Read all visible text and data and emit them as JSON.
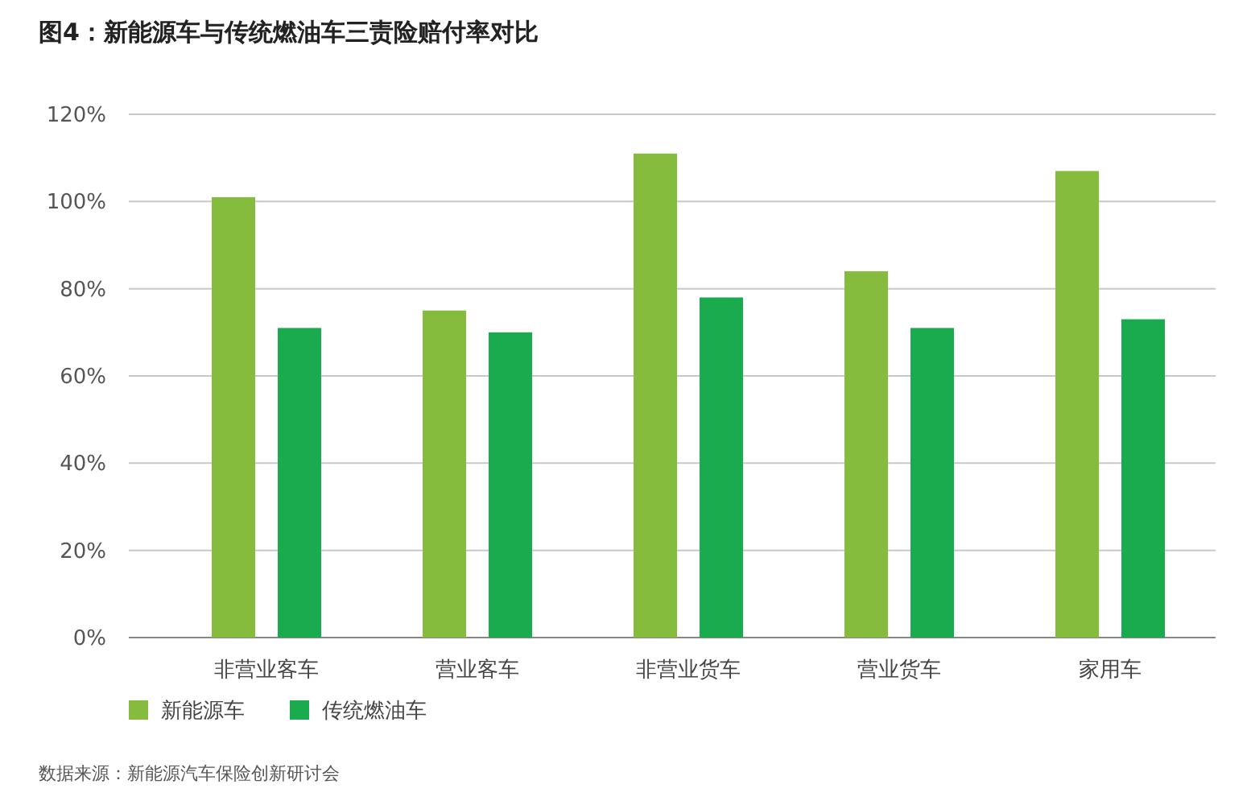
{
  "chart_data": {
    "type": "bar",
    "title": "图4：新能源车与传统燃油车三责险赔付率对比",
    "categories": [
      "非营业客车",
      "营业客车",
      "非营业货车",
      "营业货车",
      "家用车"
    ],
    "series": [
      {
        "name": "新能源车",
        "color": "#86bc3d",
        "values": [
          101,
          75,
          111,
          84,
          107
        ]
      },
      {
        "name": "传统燃油车",
        "color": "#1aab4f",
        "values": [
          71,
          70,
          78,
          71,
          73
        ]
      }
    ],
    "ylim": [
      0,
      120
    ],
    "yticks": [
      {
        "value": 0,
        "label": "0%"
      },
      {
        "value": 20,
        "label": "20%"
      },
      {
        "value": 40,
        "label": "40%"
      },
      {
        "value": 60,
        "label": "60%"
      },
      {
        "value": 80,
        "label": "80%"
      },
      {
        "value": 100,
        "label": "100%"
      },
      {
        "value": 120,
        "label": "120%"
      }
    ],
    "grid": "y",
    "legend": "bottom left",
    "annotations": [
      "数据来源：新能源汽车保险创新研讨会"
    ]
  }
}
